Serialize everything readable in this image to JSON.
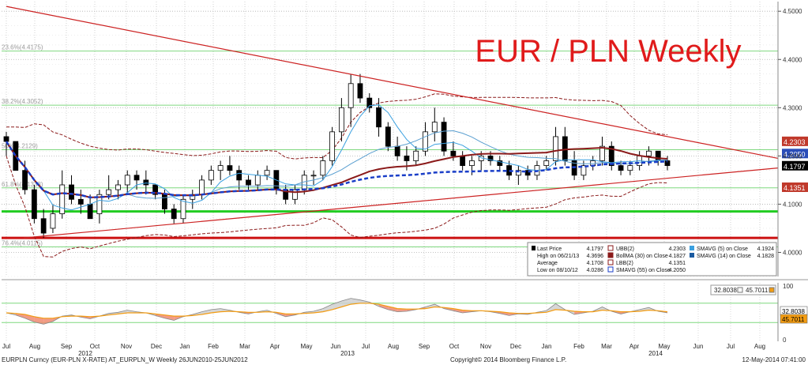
{
  "chart_data": {
    "type": "candlestick",
    "title": "EUR / PLN Weekly",
    "ylim": [
      3.95,
      4.52
    ],
    "yticks": [
      "4.5000",
      "4.4000",
      "4.3000",
      "4.2000",
      "4.1000",
      "4.0000"
    ],
    "x_months": [
      "Jul",
      "Aug",
      "Sep",
      "Oct",
      "Nov",
      "Dec",
      "Jan",
      "Feb",
      "Mar",
      "Apr",
      "May",
      "Jun",
      "Jul",
      "Aug",
      "Sep",
      "Oct",
      "Nov",
      "Dec",
      "Jan",
      "Feb",
      "Mar",
      "Apr",
      "May",
      "Jun",
      "Jul",
      "Aug"
    ],
    "x_years": [
      "2012",
      "2013",
      "2014"
    ],
    "fib_levels": [
      {
        "label": "23.6%(4.4175)",
        "value": 4.4175
      },
      {
        "label": "38.2%(4.3052)",
        "value": 4.3052
      },
      {
        "label": "50%(4.2129)",
        "value": 4.2129
      },
      {
        "label": "61.8%(4.1338)",
        "value": 4.1338
      },
      {
        "label": "76.4%(4.0115)",
        "value": 4.0115
      }
    ],
    "price_tags": [
      {
        "label": "4.2303",
        "value": 4.2303,
        "color": "#c0392b"
      },
      {
        "label": "4.2050",
        "value": 4.205,
        "color": "#2a4db8"
      },
      {
        "label": "4.1797",
        "value": 4.1797,
        "color": "#000000"
      },
      {
        "label": "4.1351",
        "value": 4.1351,
        "color": "#c0392b"
      }
    ],
    "horizontal_lines": [
      {
        "value": 4.085,
        "color": "#22cc22"
      },
      {
        "value": 4.03,
        "color": "#cc1111"
      }
    ],
    "candles": [
      [
        4.24,
        4.25,
        4.2,
        4.23
      ],
      [
        4.23,
        4.23,
        4.17,
        4.17
      ],
      [
        4.17,
        4.19,
        4.12,
        4.13
      ],
      [
        4.13,
        4.14,
        4.06,
        4.07
      ],
      [
        4.07,
        4.09,
        4.03,
        4.04
      ],
      [
        4.05,
        4.1,
        4.04,
        4.08
      ],
      [
        4.08,
        4.17,
        4.07,
        4.14
      ],
      [
        4.14,
        4.16,
        4.1,
        4.11
      ],
      [
        4.11,
        4.13,
        4.08,
        4.1
      ],
      [
        4.1,
        4.12,
        4.07,
        4.07
      ],
      [
        4.08,
        4.13,
        4.06,
        4.12
      ],
      [
        4.12,
        4.16,
        4.11,
        4.13
      ],
      [
        4.13,
        4.15,
        4.11,
        4.14
      ],
      [
        4.14,
        4.17,
        4.12,
        4.16
      ],
      [
        4.16,
        4.17,
        4.13,
        4.15
      ],
      [
        4.15,
        4.17,
        4.12,
        4.14
      ],
      [
        4.14,
        4.14,
        4.11,
        4.12
      ],
      [
        4.12,
        4.13,
        4.08,
        4.09
      ],
      [
        4.09,
        4.1,
        4.06,
        4.07
      ],
      [
        4.07,
        4.12,
        4.06,
        4.11
      ],
      [
        4.11,
        4.13,
        4.09,
        4.12
      ],
      [
        4.12,
        4.16,
        4.11,
        4.15
      ],
      [
        4.15,
        4.18,
        4.14,
        4.17
      ],
      [
        4.17,
        4.19,
        4.15,
        4.18
      ],
      [
        4.18,
        4.2,
        4.16,
        4.17
      ],
      [
        4.17,
        4.18,
        4.13,
        4.15
      ],
      [
        4.15,
        4.16,
        4.13,
        4.14
      ],
      [
        4.14,
        4.17,
        4.13,
        4.16
      ],
      [
        4.16,
        4.18,
        4.15,
        4.17
      ],
      [
        4.17,
        4.17,
        4.12,
        4.13
      ],
      [
        4.13,
        4.14,
        4.1,
        4.11
      ],
      [
        4.11,
        4.14,
        4.1,
        4.13
      ],
      [
        4.13,
        4.17,
        4.12,
        4.16
      ],
      [
        4.16,
        4.17,
        4.14,
        4.16
      ],
      [
        4.16,
        4.2,
        4.15,
        4.19
      ],
      [
        4.19,
        4.26,
        4.18,
        4.25
      ],
      [
        4.25,
        4.32,
        4.23,
        4.3
      ],
      [
        4.3,
        4.37,
        4.26,
        4.35
      ],
      [
        4.35,
        4.37,
        4.31,
        4.32
      ],
      [
        4.32,
        4.33,
        4.29,
        4.3
      ],
      [
        4.3,
        4.32,
        4.24,
        4.26
      ],
      [
        4.26,
        4.27,
        4.21,
        4.22
      ],
      [
        4.22,
        4.24,
        4.19,
        4.2
      ],
      [
        4.2,
        4.22,
        4.17,
        4.19
      ],
      [
        4.19,
        4.22,
        4.18,
        4.21
      ],
      [
        4.21,
        4.27,
        4.2,
        4.25
      ],
      [
        4.25,
        4.3,
        4.23,
        4.27
      ],
      [
        4.27,
        4.28,
        4.2,
        4.21
      ],
      [
        4.21,
        4.23,
        4.19,
        4.2
      ],
      [
        4.2,
        4.21,
        4.17,
        4.18
      ],
      [
        4.18,
        4.2,
        4.16,
        4.19
      ],
      [
        4.19,
        4.21,
        4.17,
        4.2
      ],
      [
        4.2,
        4.21,
        4.18,
        4.19
      ],
      [
        4.19,
        4.2,
        4.17,
        4.18
      ],
      [
        4.18,
        4.19,
        4.15,
        4.16
      ],
      [
        4.16,
        4.18,
        4.14,
        4.17
      ],
      [
        4.17,
        4.18,
        4.15,
        4.16
      ],
      [
        4.16,
        4.19,
        4.15,
        4.18
      ],
      [
        4.18,
        4.2,
        4.17,
        4.19
      ],
      [
        4.19,
        4.26,
        4.18,
        4.24
      ],
      [
        4.24,
        4.26,
        4.18,
        4.19
      ],
      [
        4.19,
        4.21,
        4.15,
        4.16
      ],
      [
        4.16,
        4.19,
        4.15,
        4.18
      ],
      [
        4.18,
        4.2,
        4.17,
        4.19
      ],
      [
        4.19,
        4.24,
        4.18,
        4.22
      ],
      [
        4.22,
        4.23,
        4.17,
        4.18
      ],
      [
        4.18,
        4.19,
        4.16,
        4.17
      ],
      [
        4.17,
        4.19,
        4.16,
        4.18
      ],
      [
        4.18,
        4.21,
        4.17,
        4.2
      ],
      [
        4.2,
        4.22,
        4.18,
        4.21
      ],
      [
        4.21,
        4.21,
        4.18,
        4.19
      ],
      [
        4.19,
        4.2,
        4.17,
        4.18
      ]
    ],
    "overlay_series": [
      {
        "name": "SMAVG (5) on Close",
        "color": "#3aa0e0"
      },
      {
        "name": "SMAVG (14) on Close",
        "color": "#5a9fd0"
      },
      {
        "name": "BollMA (30) on Close",
        "color": "#8b1a1a"
      },
      {
        "name": "SMAVG (55) on Close",
        "color": "#1a3ec8"
      },
      {
        "name": "UBB(2)",
        "color": "#8b1a1a"
      },
      {
        "name": "LBB(2)",
        "color": "#8b1a1a"
      }
    ],
    "legend": {
      "placement": "bottom-right",
      "left_rows": [
        {
          "label": "Last Price",
          "value": "4.1797"
        },
        {
          "label": "High on 06/21/13",
          "value": "4.3696"
        },
        {
          "label": "Average",
          "value": "4.1708"
        },
        {
          "label": "Low on 08/10/12",
          "value": "4.0286"
        }
      ],
      "mid_rows": [
        {
          "label": "UBB(2)",
          "value": "4.2303"
        },
        {
          "label": "BollMA (30) on Close",
          "value": "4.1827"
        },
        {
          "label": "LBB(2)",
          "value": "4.1351"
        },
        {
          "label": "SMAVG (55) on Close",
          "value": "4.2050"
        }
      ],
      "right_rows": [
        {
          "label": "SMAVG (5) on Close",
          "value": "4.1924"
        },
        {
          "label": "SMAVG (14) on Close",
          "value": "4.1828"
        }
      ]
    },
    "oscillator": {
      "ylim": [
        0,
        100
      ],
      "yticks": [
        "100",
        "50",
        "0"
      ],
      "values_a": [
        50,
        46,
        40,
        33,
        29,
        34,
        44,
        46,
        42,
        39,
        44,
        49,
        51,
        55,
        52,
        50,
        45,
        40,
        36,
        43,
        47,
        52,
        56,
        58,
        55,
        51,
        48,
        52,
        55,
        49,
        43,
        46,
        51,
        53,
        58,
        66,
        72,
        77,
        74,
        70,
        62,
        56,
        52,
        53,
        56,
        61,
        66,
        58,
        54,
        50,
        52,
        54,
        52,
        49,
        45,
        48,
        47,
        51,
        54,
        67,
        56,
        47,
        50,
        53,
        61,
        53,
        48,
        52,
        56,
        60,
        53,
        50
      ],
      "values_b": [
        50,
        49,
        47,
        43,
        40,
        40,
        43,
        44,
        44,
        43,
        44,
        46,
        48,
        50,
        50,
        50,
        48,
        46,
        44,
        44,
        45,
        47,
        50,
        52,
        53,
        52,
        51,
        51,
        52,
        51,
        48,
        48,
        49,
        50,
        52,
        56,
        61,
        66,
        68,
        68,
        66,
        62,
        58,
        57,
        57,
        58,
        61,
        60,
        58,
        55,
        54,
        54,
        53,
        52,
        50,
        49,
        49,
        50,
        51,
        56,
        55,
        53,
        52,
        52,
        55,
        54,
        52,
        52,
        53,
        55,
        54,
        52
      ],
      "tags": [
        {
          "label": "32.8038",
          "color": "#ffffff"
        },
        {
          "label": "45.7011",
          "color": "#f39c12"
        }
      ],
      "legend_items": [
        {
          "label": "32.8038",
          "color": "#ffffff"
        },
        {
          "label": "45.7011",
          "color": "#f39c12"
        }
      ]
    },
    "footer_left": "EURPLN Curncy (EUR-PLN X-RATE) AT_EURPLN_W  Weekly 26JUN2010-25JUN2012",
    "footer_mid": "Copyright© 2014 Bloomberg Finance L.P.",
    "footer_right": "12-May-2014 07:41:00"
  }
}
